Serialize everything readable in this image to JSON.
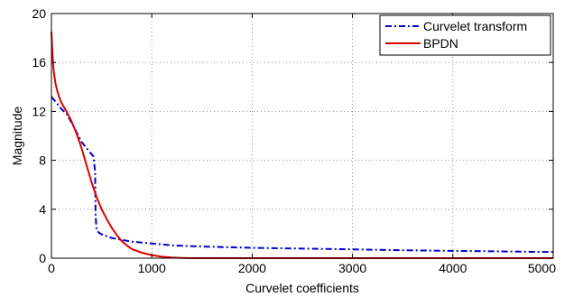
{
  "chart_data": {
    "type": "line",
    "title": "",
    "xlabel": "Curvelet coefficients",
    "ylabel": "Magnitude",
    "xlim": [
      0,
      5000
    ],
    "ylim": [
      0,
      20
    ],
    "xticks": [
      0,
      1000,
      2000,
      3000,
      4000,
      5000
    ],
    "yticks": [
      0,
      4,
      8,
      12,
      16,
      20
    ],
    "grid": true,
    "legend_position": "top-right",
    "series": [
      {
        "name": "Curvelet transform",
        "color": "#0000cc",
        "style": "dash-dot",
        "x": [
          0,
          20,
          60,
          100,
          150,
          200,
          250,
          300,
          350,
          400,
          420,
          435,
          440,
          450,
          470,
          500,
          550,
          600,
          700,
          800,
          1000,
          1200,
          1500,
          2000,
          2500,
          3000,
          3500,
          4000,
          4500,
          5000
        ],
        "y": [
          13.2,
          13.0,
          12.6,
          12.2,
          11.8,
          11.1,
          10.3,
          9.5,
          9.0,
          8.5,
          8.3,
          7.0,
          3.5,
          2.3,
          2.1,
          1.95,
          1.8,
          1.65,
          1.5,
          1.35,
          1.2,
          1.05,
          0.95,
          0.85,
          0.78,
          0.72,
          0.65,
          0.6,
          0.55,
          0.5
        ]
      },
      {
        "name": "BPDN",
        "color": "#dd0000",
        "style": "solid",
        "x": [
          0,
          10,
          20,
          40,
          60,
          80,
          100,
          150,
          200,
          250,
          300,
          350,
          400,
          450,
          500,
          550,
          600,
          650,
          700,
          750,
          800,
          900,
          1000,
          1100,
          1200,
          1300,
          1400,
          1500,
          2000,
          3000,
          4000,
          5000
        ],
        "y": [
          18.5,
          16.8,
          15.5,
          14.3,
          13.6,
          13.1,
          12.7,
          12.0,
          11.2,
          10.2,
          9.0,
          7.6,
          6.2,
          5.0,
          4.0,
          3.2,
          2.5,
          1.9,
          1.4,
          1.05,
          0.75,
          0.45,
          0.25,
          0.12,
          0.05,
          0.02,
          0.0,
          0.0,
          0.0,
          0.0,
          0.0,
          0.0
        ]
      }
    ]
  }
}
